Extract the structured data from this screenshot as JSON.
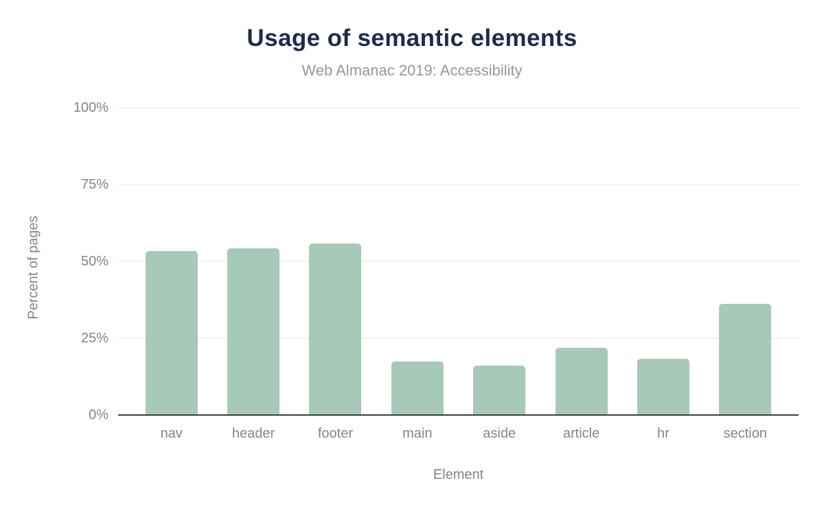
{
  "chart_data": {
    "type": "bar",
    "title": "Usage of semantic elements",
    "subtitle": "Web Almanac 2019: Accessibility",
    "xlabel": "Element",
    "ylabel": "Percent of pages",
    "categories": [
      "nav",
      "header",
      "footer",
      "main",
      "aside",
      "article",
      "hr",
      "section"
    ],
    "values": [
      53.3,
      54.2,
      55.7,
      17.4,
      16.1,
      21.9,
      18.3,
      36.1
    ],
    "y_ticks": [
      {
        "label": "0%",
        "value": 0
      },
      {
        "label": "25%",
        "value": 25
      },
      {
        "label": "50%",
        "value": 50
      },
      {
        "label": "75%",
        "value": 75
      },
      {
        "label": "100%",
        "value": 100
      }
    ],
    "ylim": [
      0,
      100
    ],
    "grid": true,
    "legend": "none",
    "bar_color": "#a7c9b7"
  },
  "colors": {
    "background": "#ffffff",
    "title": "#1e2b4e",
    "subtitle": "#97979c",
    "axis_text": "#84848c",
    "gridline": "#f1f1f3",
    "axis_line": "#3f3f41",
    "bar": "#a7c9b7"
  }
}
